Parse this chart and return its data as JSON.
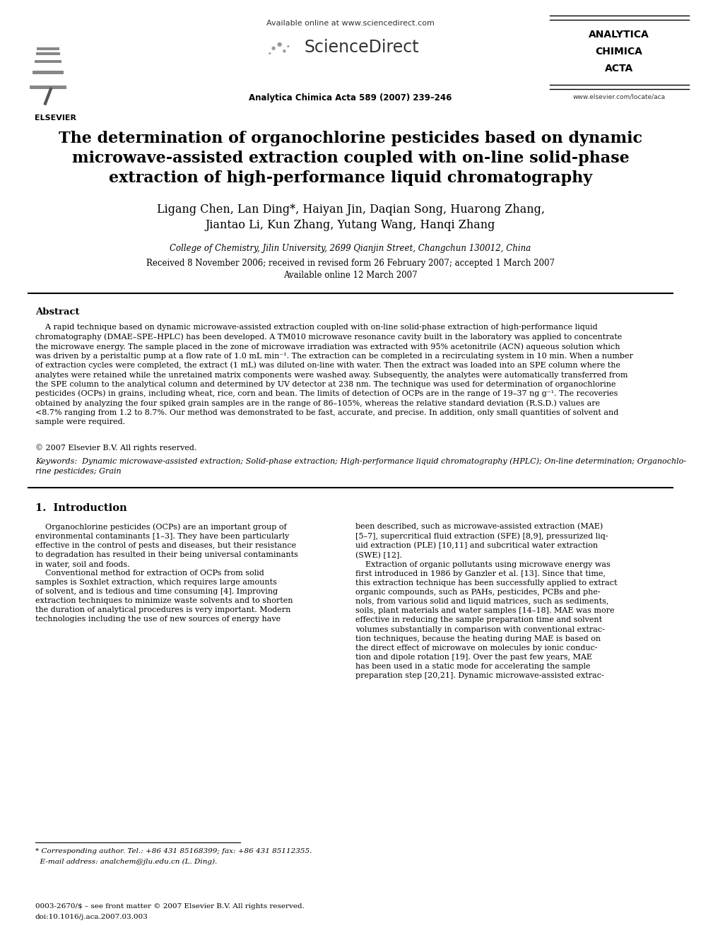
{
  "bg_color": "#ffffff",
  "header": {
    "available_online": "Available online at www.sciencedirect.com",
    "journal_ref": "Analytica Chimica Acta 589 (2007) 239–246",
    "journal_name_lines": [
      "ANALYTICA",
      "CHIMICA",
      "ACTA"
    ],
    "journal_url": "www.elsevier.com/locate/aca",
    "elsevier": "ELSEVIER"
  },
  "title_line1": "The determination of organochlorine pesticides based on dynamic",
  "title_line2": "microwave-assisted extraction coupled with on-line solid-phase",
  "title_line3": "extraction of high-performance liquid chromatography",
  "authors_line1": "Ligang Chen, Lan Ding*, Haiyan Jin, Daqian Song, Huarong Zhang,",
  "authors_line2": "Jiantao Li, Kun Zhang, Yutang Wang, Hanqi Zhang",
  "affiliation": "College of Chemistry, Jilin University, 2699 Qianjin Street, Changchun 130012, China",
  "received": "Received 8 November 2006; received in revised form 26 February 2007; accepted 1 March 2007",
  "available": "Available online 12 March 2007",
  "abstract_title": "Abstract",
  "abstract_para": "    A rapid technique based on dynamic microwave-assisted extraction coupled with on-line solid-phase extraction of high-performance liquid\nchromatography (DMAE–SPE–HPLC) has been developed. A TM010 microwave resonance cavity built in the laboratory was applied to concentrate\nthe microwave energy. The sample placed in the zone of microwave irradiation was extracted with 95% acetonitrile (ACN) aqueous solution which\nwas driven by a peristaltic pump at a flow rate of 1.0 mL min⁻¹. The extraction can be completed in a recirculating system in 10 min. When a number\nof extraction cycles were completed, the extract (1 mL) was diluted on-line with water. Then the extract was loaded into an SPE column where the\nanalytes were retained while the unretained matrix components were washed away. Subsequently, the analytes were automatically transferred from\nthe SPE column to the analytical column and determined by UV detector at 238 nm. The technique was used for determination of organochlorine\npesticides (OCPs) in grains, including wheat, rice, corn and bean. The limits of detection of OCPs are in the range of 19–37 ng g⁻¹. The recoveries\nobtained by analyzing the four spiked grain samples are in the range of 86–105%, whereas the relative standard deviation (R.S.D.) values are\n<8.7% ranging from 1.2 to 8.7%. Our method was demonstrated to be fast, accurate, and precise. In addition, only small quantities of solvent and\nsample were required.",
  "copyright": "© 2007 Elsevier B.V. All rights reserved.",
  "keywords_line1": "Keywords:  Dynamic microwave-assisted extraction; Solid-phase extraction; High-performance liquid chromatography (HPLC); On-line determination; Organochlo-",
  "keywords_line2": "rine pesticides; Grain",
  "section1_title": "1.  Introduction",
  "left_col": "    Organochlorine pesticides (OCPs) are an important group of\nenvironmental contaminants [1–3]. They have been particularly\neffective in the control of pests and diseases, but their resistance\nto degradation has resulted in their being universal contaminants\nin water, soil and foods.\n    Conventional method for extraction of OCPs from solid\nsamples is Soxhlet extraction, which requires large amounts\nof solvent, and is tedious and time consuming [4]. Improving\nextraction techniques to minimize waste solvents and to shorten\nthe duration of analytical procedures is very important. Modern\ntechnologies including the use of new sources of energy have",
  "right_col": "been described, such as microwave-assisted extraction (MAE)\n[5–7], supercritical fluid extraction (SFE) [8,9], pressurized liq-\nuid extraction (PLE) [10,11] and subcritical water extraction\n(SWE) [12].\n    Extraction of organic pollutants using microwave energy was\nfirst introduced in 1986 by Ganzler et al. [13]. Since that time,\nthis extraction technique has been successfully applied to extract\norganic compounds, such as PAHs, pesticides, PCBs and phe-\nnols, from various solid and liquid matrices, such as sediments,\nsoils, plant materials and water samples [14–18]. MAE was more\neffective in reducing the sample preparation time and solvent\nvolumes substantially in comparison with conventional extrac-\ntion techniques, because the heating during MAE is based on\nthe direct effect of microwave on molecules by ionic conduc-\ntion and dipole rotation [19]. Over the past few years, MAE\nhas been used in a static mode for accelerating the sample\npreparation step [20,21]. Dynamic microwave-assisted extrac-",
  "footnote_line1": "* Corresponding author. Tel.: +86 431 85168399; fax: +86 431 85112355.",
  "footnote_line2": "  E-mail address: analchem@jlu.edu.cn (L. Ding).",
  "bottom_line1": "0003-2670/$ – see front matter © 2007 Elsevier B.V. All rights reserved.",
  "bottom_line2": "doi:10.1016/j.aca.2007.03.003"
}
